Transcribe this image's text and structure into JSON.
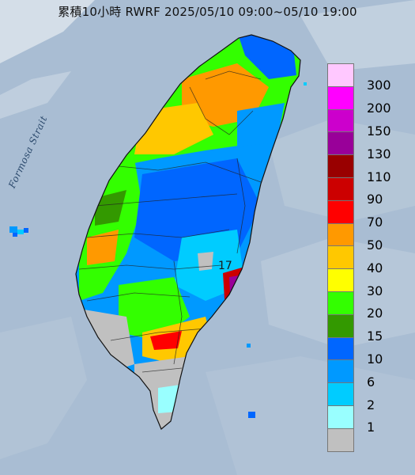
{
  "title": "累積10小時 RWRF 2025/05/10 09:00~05/10 19:00",
  "map_labels": {
    "strait": "Formosa Strait",
    "peak_value": "17"
  },
  "legend": {
    "items": [
      {
        "label": "300",
        "color": "#ffc8ff"
      },
      {
        "label": "200",
        "color": "#ff00ff"
      },
      {
        "label": "150",
        "color": "#cc00cc"
      },
      {
        "label": "130",
        "color": "#990099"
      },
      {
        "label": "110",
        "color": "#990000"
      },
      {
        "label": "90",
        "color": "#cc0000"
      },
      {
        "label": "70",
        "color": "#ff0000"
      },
      {
        "label": "50",
        "color": "#ff9900"
      },
      {
        "label": "40",
        "color": "#ffc800"
      },
      {
        "label": "30",
        "color": "#ffff00"
      },
      {
        "label": "20",
        "color": "#33ff00"
      },
      {
        "label": "15",
        "color": "#339900"
      },
      {
        "label": "10",
        "color": "#0066ff"
      },
      {
        "label": "6",
        "color": "#0099ff"
      },
      {
        "label": "2",
        "color": "#00ccff"
      },
      {
        "label": "1",
        "color": "#99ffff"
      },
      {
        "label": "",
        "color": "#c0c0c0"
      }
    ]
  }
}
